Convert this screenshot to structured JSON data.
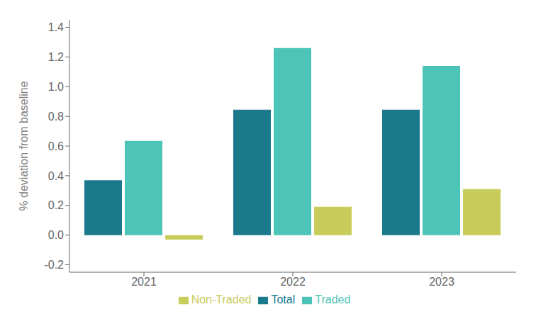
{
  "chart_data": {
    "type": "bar",
    "categories": [
      "2021",
      "2022",
      "2023"
    ],
    "series": [
      {
        "name": "Total",
        "color": "#1a7a8c",
        "values": [
          0.37,
          0.845,
          0.845
        ]
      },
      {
        "name": "Traded",
        "color": "#4dc4b8",
        "values": [
          0.635,
          1.26,
          1.14
        ]
      },
      {
        "name": "Non-Traded",
        "color": "#c8cc5a",
        "values": [
          -0.03,
          0.19,
          0.31
        ]
      }
    ],
    "y_label": "% deviation from baseline",
    "ylim": [
      -0.25,
      1.45
    ],
    "yticks": [
      -0.2,
      {
        "value": 0.0,
        "label": "0.0"
      },
      0.2,
      0.4,
      0.6,
      0.8,
      {
        "value": 1.0,
        "label": "1.0"
      },
      1.2,
      1.4
    ],
    "grid": false,
    "legend": "bottom"
  }
}
